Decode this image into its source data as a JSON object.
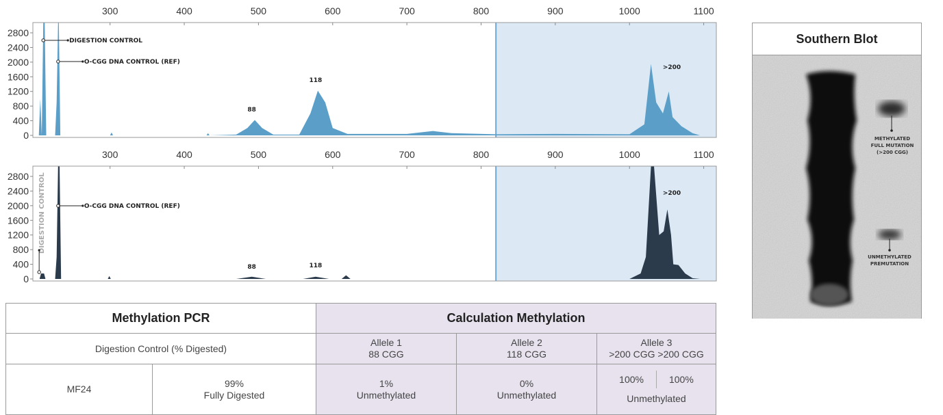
{
  "chart_data": [
    {
      "type": "area",
      "color": "#5b9fc9",
      "xlim": [
        196,
        1117
      ],
      "xticks": [
        300,
        400,
        500,
        600,
        700,
        800,
        900,
        1000,
        1100
      ],
      "ylim": [
        0,
        3080
      ],
      "yticks": [
        0,
        400,
        800,
        1200,
        1600,
        2000,
        2400,
        2800
      ],
      "highlight_xlim": [
        820,
        1117
      ],
      "highlight_color": "#dce9f4",
      "x": [
        196,
        204,
        206,
        208,
        210,
        212,
        214,
        226,
        228,
        230,
        231,
        233,
        300,
        302,
        304,
        430,
        432,
        434,
        470,
        485,
        495,
        505,
        520,
        555,
        570,
        580,
        590,
        600,
        620,
        700,
        735,
        760,
        820,
        900,
        1000,
        1020,
        1029,
        1036,
        1045,
        1053,
        1058,
        1070,
        1085,
        1095,
        1117
      ],
      "values": [
        0,
        0,
        1000,
        0,
        3080,
        3080,
        0,
        0,
        900,
        3080,
        3080,
        0,
        0,
        80,
        0,
        0,
        60,
        0,
        20,
        200,
        420,
        200,
        20,
        20,
        600,
        1220,
        900,
        200,
        40,
        40,
        120,
        60,
        30,
        40,
        30,
        300,
        1950,
        900,
        600,
        1200,
        500,
        250,
        60,
        0,
        0
      ],
      "annotations": [
        {
          "text": "DIGESTION CONTROL",
          "x": 210,
          "y": 2595,
          "leader": true
        },
        {
          "text": "O-CGG DNA CONTROL (REF)",
          "x": 230,
          "y": 2016,
          "leader": true
        },
        {
          "text": "88",
          "x": 491,
          "y": 653
        },
        {
          "text": "118",
          "x": 577,
          "y": 1456
        },
        {
          "text": ">200",
          "x": 1057,
          "y": 1810
        }
      ]
    },
    {
      "type": "area",
      "color": "#2b3b4c",
      "xlim": [
        196,
        1117
      ],
      "xticks": [
        300,
        400,
        500,
        600,
        700,
        800,
        900,
        1000,
        1100
      ],
      "ylim": [
        0,
        3080
      ],
      "yticks": [
        0,
        400,
        800,
        1200,
        1600,
        2000,
        2400,
        2800
      ],
      "highlight_xlim": [
        820,
        1117
      ],
      "highlight_color": "#dce9f4",
      "x": [
        196,
        205,
        207,
        211,
        213,
        226,
        228,
        230,
        232,
        234,
        297,
        299,
        301,
        470,
        491,
        510,
        560,
        577,
        595,
        612,
        618,
        624,
        1000,
        1015,
        1022,
        1029,
        1033,
        1040,
        1046,
        1051,
        1056,
        1059,
        1066,
        1075,
        1085,
        1095,
        1117
      ],
      "values": [
        0,
        0,
        150,
        150,
        0,
        0,
        600,
        3080,
        3080,
        0,
        0,
        80,
        0,
        0,
        60,
        0,
        0,
        60,
        0,
        0,
        100,
        0,
        0,
        150,
        600,
        3080,
        3080,
        1200,
        1300,
        1900,
        1200,
        400,
        380,
        150,
        20,
        0,
        0
      ],
      "annotations": [
        {
          "text": "DIGESTION CONTROL",
          "x": 210,
          "y": 1800,
          "vertical": true
        },
        {
          "text": "O-CGG DNA CONTROL (REF)",
          "x": 230,
          "y": 1997,
          "leader": true
        },
        {
          "text": "88",
          "x": 491,
          "y": 280
        },
        {
          "text": "118",
          "x": 577,
          "y": 317
        },
        {
          "text": ">200",
          "x": 1057,
          "y": 2296
        }
      ]
    }
  ],
  "table": {
    "header": [
      "Methylation PCR",
      "Calculation Methylation"
    ],
    "subheader": {
      "digestion": "Digestion Control (% Digested)",
      "alleles": [
        [
          "Allele 1",
          "88 CGG"
        ],
        [
          "Allele 2",
          "118 CGG"
        ],
        [
          "Allele 3",
          ">200 CGG >200 CGG"
        ]
      ]
    },
    "row": {
      "sample": "MF24",
      "digested": [
        "99%",
        "Fully Digested"
      ],
      "allele1": [
        "1%",
        "Unmethylated"
      ],
      "allele2": [
        "0%",
        "Unmethylated"
      ],
      "allele3": [
        "100%",
        "100%",
        "Unmethylated"
      ]
    }
  },
  "southern_blot": {
    "title": "Southern Blot",
    "full_mutation_label": [
      "METHYLATED",
      "FULL MUTATION",
      "(>200 CGG)"
    ],
    "premutation_label": [
      "UNMETHYLATED",
      "PREMUTATION"
    ]
  }
}
